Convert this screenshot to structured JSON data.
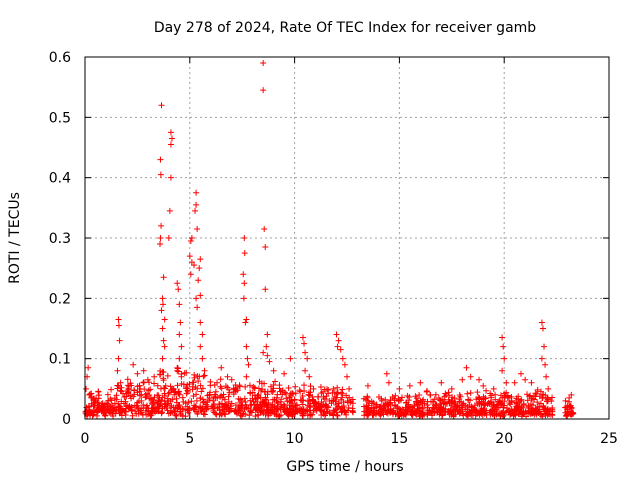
{
  "chart_data": {
    "type": "scatter",
    "title": "Day 278 of 2024, Rate Of TEC Index for receiver gamb",
    "xlabel": "GPS time / hours",
    "ylabel": "ROTI / TECUs",
    "xlim": [
      0,
      25
    ],
    "ylim": [
      0,
      0.6
    ],
    "xticks": [
      0,
      5,
      10,
      15,
      20,
      25
    ],
    "yticks": [
      0,
      0.1,
      0.2,
      0.3,
      0.4,
      0.5,
      0.6
    ],
    "xtick_labels": [
      "0",
      "5",
      "10",
      "15",
      "20",
      "25"
    ],
    "ytick_labels": [
      "0",
      "0.1",
      "0.2",
      "0.3",
      "0.4",
      "0.5",
      "0.6"
    ],
    "grid": true,
    "marker": "+",
    "color": "#ff0000",
    "series": [
      {
        "name": "ROTI",
        "points": [
          [
            0.05,
            0.05
          ],
          [
            0.1,
            0.07
          ],
          [
            0.15,
            0.085
          ],
          [
            0.2,
            0.04
          ],
          [
            0.3,
            0.035
          ],
          [
            0.5,
            0.03
          ],
          [
            0.8,
            0.025
          ],
          [
            1.6,
            0.165
          ],
          [
            1.62,
            0.155
          ],
          [
            1.65,
            0.13
          ],
          [
            1.6,
            0.1
          ],
          [
            1.55,
            0.08
          ],
          [
            1.7,
            0.06
          ],
          [
            2.3,
            0.09
          ],
          [
            2.5,
            0.075
          ],
          [
            2.8,
            0.08
          ],
          [
            3.0,
            0.065
          ],
          [
            3.3,
            0.07
          ],
          [
            3.65,
            0.52
          ],
          [
            3.6,
            0.43
          ],
          [
            3.62,
            0.405
          ],
          [
            3.63,
            0.32
          ],
          [
            3.6,
            0.3
          ],
          [
            3.58,
            0.29
          ],
          [
            3.75,
            0.235
          ],
          [
            3.7,
            0.2
          ],
          [
            3.72,
            0.19
          ],
          [
            3.65,
            0.18
          ],
          [
            3.8,
            0.165
          ],
          [
            3.7,
            0.15
          ],
          [
            3.75,
            0.13
          ],
          [
            3.8,
            0.12
          ],
          [
            3.7,
            0.1
          ],
          [
            4.1,
            0.475
          ],
          [
            4.15,
            0.465
          ],
          [
            4.1,
            0.455
          ],
          [
            4.1,
            0.4
          ],
          [
            4.05,
            0.345
          ],
          [
            4.0,
            0.3
          ],
          [
            4.4,
            0.225
          ],
          [
            4.45,
            0.215
          ],
          [
            4.5,
            0.19
          ],
          [
            4.55,
            0.16
          ],
          [
            4.5,
            0.14
          ],
          [
            4.6,
            0.12
          ],
          [
            4.5,
            0.1
          ],
          [
            4.4,
            0.08
          ],
          [
            4.6,
            0.07
          ],
          [
            5.3,
            0.375
          ],
          [
            5.3,
            0.355
          ],
          [
            5.25,
            0.345
          ],
          [
            5.35,
            0.315
          ],
          [
            5.1,
            0.3
          ],
          [
            5.05,
            0.295
          ],
          [
            5.0,
            0.27
          ],
          [
            5.1,
            0.26
          ],
          [
            5.2,
            0.255
          ],
          [
            5.05,
            0.24
          ],
          [
            5.5,
            0.265
          ],
          [
            5.45,
            0.25
          ],
          [
            5.4,
            0.23
          ],
          [
            5.5,
            0.205
          ],
          [
            5.3,
            0.2
          ],
          [
            5.35,
            0.185
          ],
          [
            5.5,
            0.16
          ],
          [
            5.6,
            0.14
          ],
          [
            5.5,
            0.12
          ],
          [
            5.6,
            0.1
          ],
          [
            5.7,
            0.08
          ],
          [
            6.3,
            0.06
          ],
          [
            6.5,
            0.085
          ],
          [
            6.8,
            0.07
          ],
          [
            7.0,
            0.065
          ],
          [
            7.6,
            0.3
          ],
          [
            7.62,
            0.275
          ],
          [
            7.55,
            0.24
          ],
          [
            7.6,
            0.225
          ],
          [
            7.58,
            0.2
          ],
          [
            7.7,
            0.165
          ],
          [
            7.65,
            0.16
          ],
          [
            7.7,
            0.12
          ],
          [
            7.75,
            0.1
          ],
          [
            7.8,
            0.09
          ],
          [
            7.7,
            0.07
          ],
          [
            8.5,
            0.59
          ],
          [
            8.5,
            0.545
          ],
          [
            8.55,
            0.315
          ],
          [
            8.6,
            0.285
          ],
          [
            8.6,
            0.215
          ],
          [
            8.7,
            0.14
          ],
          [
            8.65,
            0.12
          ],
          [
            8.5,
            0.11
          ],
          [
            8.7,
            0.105
          ],
          [
            8.8,
            0.095
          ],
          [
            9.0,
            0.08
          ],
          [
            9.5,
            0.075
          ],
          [
            9.8,
            0.1
          ],
          [
            10.4,
            0.135
          ],
          [
            10.45,
            0.125
          ],
          [
            10.5,
            0.11
          ],
          [
            10.6,
            0.1
          ],
          [
            10.5,
            0.08
          ],
          [
            10.7,
            0.07
          ],
          [
            10.9,
            0.05
          ],
          [
            12.0,
            0.14
          ],
          [
            12.1,
            0.13
          ],
          [
            12.05,
            0.12
          ],
          [
            12.2,
            0.115
          ],
          [
            12.3,
            0.1
          ],
          [
            12.4,
            0.09
          ],
          [
            12.5,
            0.07
          ],
          [
            12.6,
            0.05
          ],
          [
            13.5,
            0.055
          ],
          [
            14.4,
            0.075
          ],
          [
            14.5,
            0.06
          ],
          [
            15.0,
            0.05
          ],
          [
            15.5,
            0.055
          ],
          [
            16.0,
            0.06
          ],
          [
            16.3,
            0.045
          ],
          [
            17.0,
            0.06
          ],
          [
            17.5,
            0.05
          ],
          [
            18.0,
            0.065
          ],
          [
            18.2,
            0.085
          ],
          [
            18.4,
            0.07
          ],
          [
            18.8,
            0.065
          ],
          [
            19.0,
            0.055
          ],
          [
            19.5,
            0.05
          ],
          [
            19.9,
            0.135
          ],
          [
            19.95,
            0.12
          ],
          [
            20.0,
            0.1
          ],
          [
            19.9,
            0.08
          ],
          [
            20.1,
            0.06
          ],
          [
            20.5,
            0.06
          ],
          [
            20.8,
            0.075
          ],
          [
            21.0,
            0.065
          ],
          [
            21.3,
            0.06
          ],
          [
            21.8,
            0.16
          ],
          [
            21.85,
            0.15
          ],
          [
            21.9,
            0.12
          ],
          [
            21.8,
            0.1
          ],
          [
            21.95,
            0.09
          ],
          [
            22.0,
            0.07
          ],
          [
            22.1,
            0.05
          ],
          [
            23.1,
            0.035
          ],
          [
            23.2,
            0.04
          ]
        ],
        "dense_segments": [
          {
            "start": 0.0,
            "end": 1.5,
            "base": 0.02,
            "spread": 0.035
          },
          {
            "start": 1.5,
            "end": 3.5,
            "base": 0.025,
            "spread": 0.05
          },
          {
            "start": 3.5,
            "end": 6.0,
            "base": 0.03,
            "spread": 0.07
          },
          {
            "start": 6.0,
            "end": 9.5,
            "base": 0.025,
            "spread": 0.05
          },
          {
            "start": 9.5,
            "end": 12.8,
            "base": 0.02,
            "spread": 0.045
          },
          {
            "start": 13.3,
            "end": 16.2,
            "base": 0.015,
            "spread": 0.03
          },
          {
            "start": 16.3,
            "end": 22.3,
            "base": 0.02,
            "spread": 0.035
          },
          {
            "start": 22.9,
            "end": 23.3,
            "base": 0.015,
            "spread": 0.02
          }
        ]
      }
    ]
  }
}
